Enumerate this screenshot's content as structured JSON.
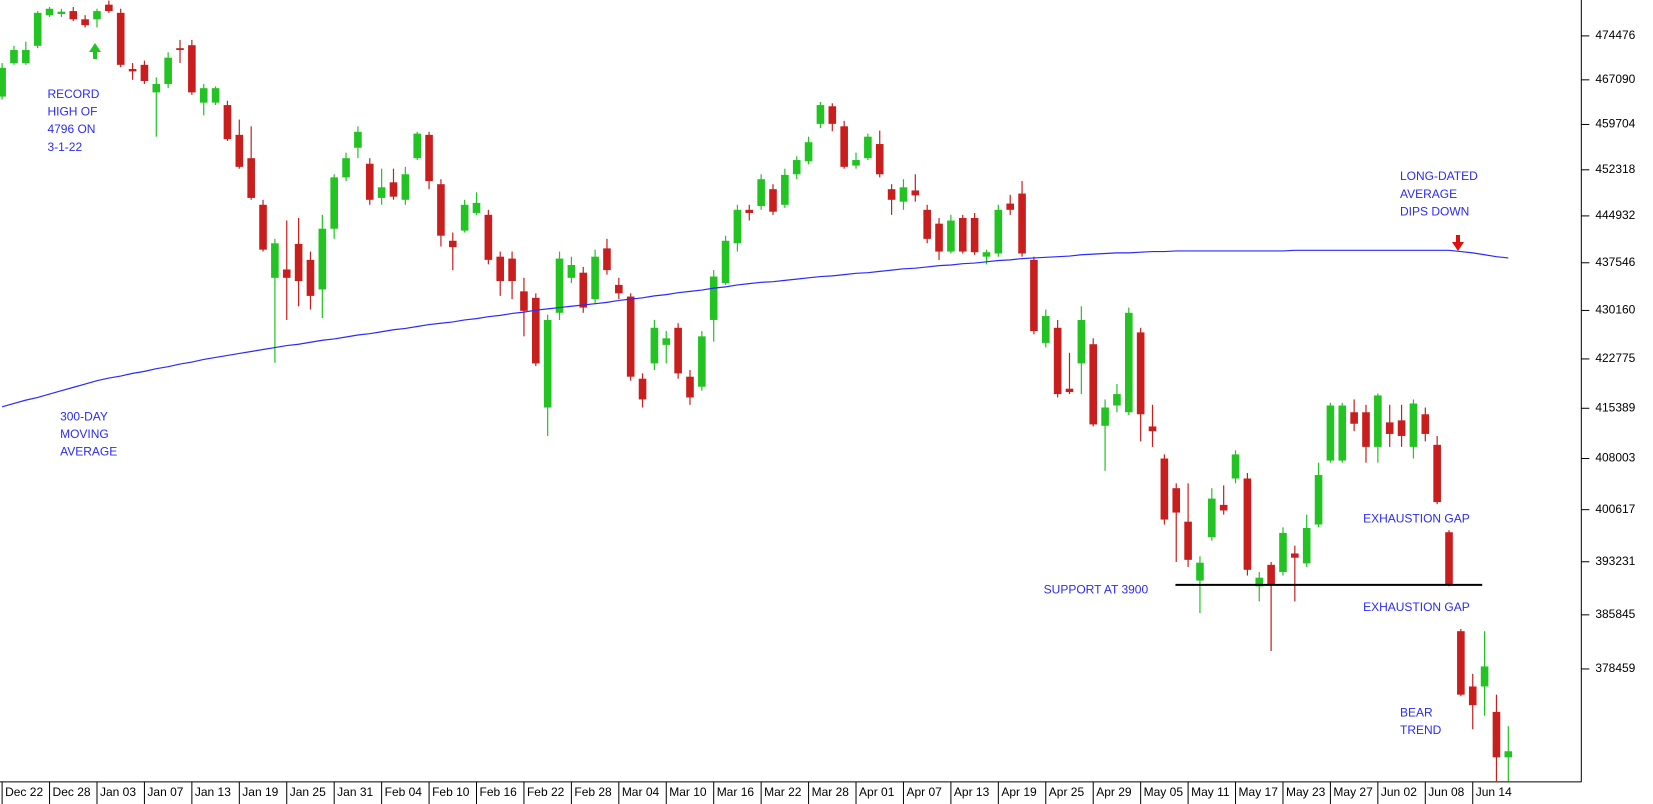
{
  "chart_data": {
    "type": "candlestick",
    "yscale": "log",
    "axis_side": "right",
    "ylim": [
      363500,
      480600
    ],
    "yticks": [
      474476,
      467090,
      459704,
      452318,
      444932,
      437546,
      430160,
      422775,
      415389,
      408003,
      400617,
      393231,
      385845,
      378459
    ],
    "colors": {
      "up": "#22c322",
      "down": "#c81e1e"
    },
    "categories": [
      "Dec 22",
      null,
      null,
      null,
      "Dec 28",
      null,
      null,
      null,
      "Jan 03",
      null,
      null,
      null,
      "Jan 07",
      null,
      null,
      null,
      "Jan 13",
      null,
      null,
      null,
      "Jan 19",
      null,
      null,
      null,
      "Jan 25",
      null,
      null,
      null,
      "Jan 31",
      null,
      null,
      null,
      "Feb 04",
      null,
      null,
      null,
      "Feb 10",
      null,
      null,
      null,
      "Feb 16",
      null,
      null,
      null,
      "Feb 22",
      null,
      null,
      null,
      "Feb 28",
      null,
      null,
      null,
      "Mar 04",
      null,
      null,
      null,
      "Mar 10",
      null,
      null,
      null,
      "Mar 16",
      null,
      null,
      null,
      "Mar 22",
      null,
      null,
      null,
      "Mar 28",
      null,
      null,
      null,
      "Apr 01",
      null,
      null,
      null,
      "Apr 07",
      null,
      null,
      null,
      "Apr 13",
      null,
      null,
      null,
      "Apr 19",
      null,
      null,
      null,
      "Apr 25",
      null,
      null,
      null,
      "Apr 29",
      null,
      null,
      null,
      "May 05",
      null,
      null,
      null,
      "May 11",
      null,
      null,
      null,
      "May 17",
      null,
      null,
      null,
      "May 23",
      null,
      null,
      null,
      "May 27",
      null,
      null,
      null,
      "Jun 02",
      null,
      null,
      null,
      "Jun 08",
      null,
      null,
      null,
      "Jun 14",
      null,
      null,
      null
    ],
    "open": [
      464300,
      469900,
      469900,
      472800,
      478000,
      478200,
      478700,
      477300,
      477300,
      479800,
      478400,
      468900,
      469600,
      465000,
      466400,
      472400,
      472900,
      463300,
      463300,
      462900,
      458000,
      454200,
      446700,
      435200,
      436500,
      440500,
      438000,
      433400,
      442900,
      451100,
      455900,
      453300,
      447800,
      450300,
      447500,
      454200,
      458000,
      450000,
      441000,
      442600,
      445400,
      445100,
      438500,
      438200,
      433100,
      432100,
      415500,
      429800,
      435200,
      436000,
      431900,
      439800,
      434100,
      432300,
      419800,
      422100,
      424900,
      427500,
      420100,
      418600,
      428700,
      434400,
      440600,
      445900,
      446500,
      449200,
      446700,
      451600,
      453700,
      459800,
      462700,
      459400,
      453000,
      454200,
      456500,
      449200,
      447200,
      449000,
      445900,
      443700,
      439300,
      444600,
      444600,
      438500,
      439000,
      446900,
      448500,
      438000,
      425200,
      427500,
      418300,
      422100,
      425000,
      412800,
      415800,
      414800,
      426800,
      412700,
      408000,
      403700,
      398900,
      390600,
      396700,
      401300,
      405100,
      405100,
      389800,
      392800,
      391800,
      394400,
      393000,
      398500,
      407700,
      407700,
      414800,
      414800,
      409700,
      413300,
      413600,
      409700,
      414500,
      410000,
      397400,
      383600,
      376100,
      376100,
      372700,
      366700
    ],
    "high": [
      469900,
      472800,
      473500,
      478700,
      479400,
      479100,
      479400,
      478000,
      479100,
      480500,
      479100,
      469900,
      470300,
      467500,
      471700,
      473800,
      473800,
      466400,
      466000,
      463600,
      460500,
      459400,
      447500,
      441300,
      444200,
      444600,
      439300,
      445100,
      451600,
      455100,
      459400,
      454200,
      452500,
      452500,
      452800,
      458500,
      458500,
      450800,
      442300,
      447500,
      448700,
      445900,
      439300,
      439300,
      435200,
      432800,
      429500,
      439300,
      438500,
      436900,
      439600,
      441300,
      435200,
      432800,
      420600,
      428700,
      427000,
      428200,
      421100,
      427000,
      436400,
      441800,
      446700,
      446700,
      451600,
      450000,
      452500,
      454500,
      457700,
      463400,
      463200,
      460300,
      455100,
      458200,
      458700,
      450000,
      450800,
      451600,
      446700,
      444600,
      445100,
      445100,
      445400,
      439600,
      446700,
      448300,
      450500,
      438500,
      430300,
      428700,
      423700,
      430800,
      425900,
      416700,
      419000,
      430600,
      427500,
      415900,
      408600,
      404400,
      404400,
      394000,
      403700,
      404100,
      409200,
      405900,
      391800,
      393200,
      398100,
      395500,
      399900,
      407400,
      416200,
      416200,
      416700,
      415900,
      417600,
      415900,
      415900,
      416700,
      415500,
      411300,
      397700,
      383900,
      377800,
      383600,
      375000,
      370800
    ],
    "low": [
      463800,
      469600,
      469600,
      472400,
      477700,
      477700,
      477000,
      475900,
      475900,
      478400,
      469200,
      467100,
      466400,
      457700,
      465700,
      469900,
      464600,
      461200,
      462900,
      457000,
      452500,
      447500,
      439300,
      422200,
      428700,
      430800,
      430300,
      429000,
      441300,
      450500,
      454200,
      446700,
      446700,
      447500,
      446700,
      453900,
      449200,
      440100,
      436400,
      442300,
      445100,
      437300,
      432400,
      431900,
      426200,
      421700,
      411300,
      428700,
      434400,
      429800,
      431100,
      435700,
      431900,
      419500,
      415500,
      421100,
      422100,
      419800,
      415900,
      418000,
      425400,
      434100,
      439300,
      444200,
      445900,
      445100,
      446200,
      450800,
      453200,
      459100,
      458600,
      452500,
      452500,
      453900,
      451100,
      445100,
      445900,
      447200,
      440600,
      438000,
      439000,
      439000,
      438800,
      437300,
      438500,
      445100,
      438500,
      426500,
      424500,
      417000,
      417500,
      417500,
      412700,
      406200,
      414800,
      414400,
      410500,
      409700,
      398500,
      393200,
      392500,
      386100,
      396200,
      399900,
      404400,
      391300,
      387700,
      380900,
      391300,
      387700,
      392500,
      398100,
      407400,
      407400,
      412000,
      407400,
      407400,
      409700,
      409700,
      408000,
      410500,
      401400,
      389800,
      374800,
      370400,
      372200,
      363600,
      363600
    ],
    "close": [
      469100,
      472100,
      472100,
      478400,
      479100,
      478600,
      477300,
      476300,
      478700,
      478700,
      469600,
      468500,
      466900,
      466400,
      470800,
      472100,
      465000,
      465700,
      465700,
      457300,
      452800,
      447800,
      439600,
      440600,
      435200,
      434700,
      432400,
      442900,
      451100,
      454200,
      458500,
      447500,
      449500,
      448000,
      451600,
      458200,
      450500,
      441800,
      440000,
      446700,
      447000,
      438000,
      434700,
      434700,
      430100,
      422100,
      428700,
      438200,
      437200,
      430600,
      438500,
      436400,
      432800,
      420100,
      416700,
      427500,
      425900,
      420600,
      417000,
      426200,
      435400,
      441000,
      445900,
      445400,
      450800,
      445600,
      451500,
      453900,
      456800,
      462900,
      459800,
      452800,
      453900,
      457700,
      451600,
      447500,
      449500,
      448200,
      441300,
      439300,
      444200,
      439300,
      439200,
      439200,
      445900,
      445900,
      439000,
      427000,
      429300,
      417500,
      417800,
      428700,
      413000,
      415500,
      417500,
      429800,
      414500,
      412000,
      399200,
      400200,
      393500,
      393100,
      402200,
      400500,
      408600,
      392100,
      391000,
      390100,
      397300,
      393800,
      398000,
      405600,
      415800,
      415800,
      413100,
      409700,
      417300,
      411600,
      411300,
      416100,
      411600,
      401700,
      390100,
      375000,
      373600,
      378800,
      366700,
      367500
    ],
    "moving_average": {
      "color": "#2a2aff",
      "values": [
        415600,
        416100,
        416600,
        417000,
        417500,
        418000,
        418500,
        419000,
        419500,
        419900,
        420200,
        420600,
        420900,
        421300,
        421600,
        422000,
        422300,
        422700,
        423000,
        423300,
        423600,
        423900,
        424200,
        424500,
        424800,
        425000,
        425300,
        425600,
        425800,
        426100,
        426400,
        426600,
        426900,
        427200,
        427400,
        427700,
        428000,
        428200,
        428400,
        428700,
        428900,
        429200,
        429400,
        429700,
        429900,
        430200,
        430400,
        430600,
        430800,
        431000,
        431200,
        431400,
        431700,
        431900,
        432100,
        432400,
        432600,
        432900,
        433100,
        433300,
        433600,
        433800,
        434100,
        434300,
        434500,
        434600,
        434800,
        435000,
        435200,
        435400,
        435500,
        435700,
        435900,
        436000,
        436200,
        436400,
        436600,
        436700,
        436900,
        437100,
        437200,
        437400,
        437500,
        437700,
        437900,
        438000,
        438200,
        438300,
        438400,
        438500,
        438600,
        438800,
        438900,
        439000,
        439100,
        439100,
        439200,
        439300,
        439300,
        439400,
        439400,
        439400,
        439400,
        439400,
        439400,
        439400,
        439400,
        439400,
        439400,
        439500,
        439500,
        439500,
        439500,
        439500,
        439500,
        439500,
        439500,
        439500,
        439500,
        439500,
        439500,
        439500,
        439500,
        439300,
        439100,
        438800,
        438500,
        438300
      ]
    },
    "support_level": 390000,
    "annotations": [
      {
        "lines": [
          "RECORD",
          "HIGH OF",
          "4796 ON",
          "3-1-22"
        ]
      },
      {
        "lines": [
          "300-DAY",
          "MOVING",
          "AVERAGE"
        ]
      },
      {
        "lines": [
          "LONG-DATED",
          "AVERAGE",
          "DIPS DOWN"
        ]
      },
      {
        "lines": [
          "EXHAUSTION GAP"
        ]
      },
      {
        "lines": [
          "SUPPORT AT 3900"
        ]
      },
      {
        "lines": [
          "EXHAUSTION GAP"
        ]
      },
      {
        "lines": [
          "BEAR",
          "TREND"
        ]
      }
    ]
  }
}
